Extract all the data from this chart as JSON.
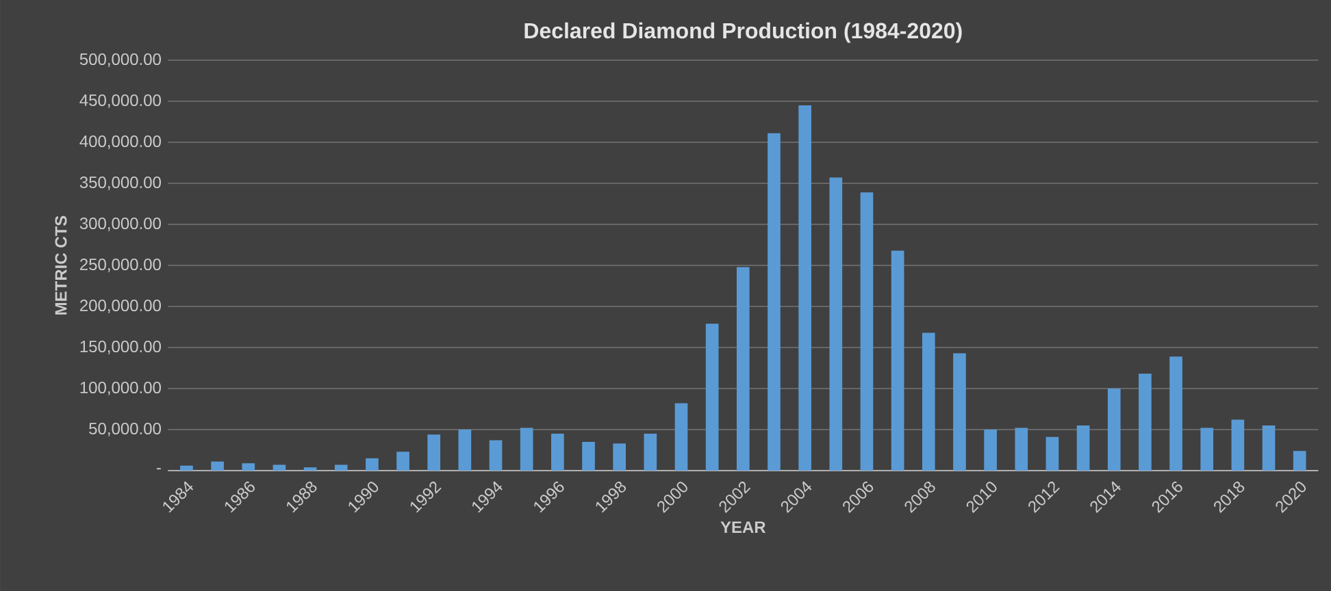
{
  "chart_data": {
    "type": "bar",
    "title": "Declared Diamond Production (1984-2020)",
    "xlabel": "YEAR",
    "ylabel": "METRIC CTS",
    "categories": [
      "1984",
      null,
      "1986",
      null,
      "1988",
      null,
      "1990",
      null,
      "1992",
      null,
      "1994",
      null,
      "1996",
      null,
      "1998",
      null,
      "2000",
      null,
      "2002",
      null,
      "2004",
      null,
      "2006",
      null,
      "2008",
      null,
      "2010",
      null,
      "2012",
      null,
      "2014",
      null,
      "2016",
      null,
      "2018",
      null,
      "2020"
    ],
    "values": [
      6000,
      11000,
      9000,
      7000,
      4000,
      7000,
      15000,
      23000,
      44000,
      50000,
      37000,
      52000,
      45000,
      35000,
      33000,
      45000,
      82000,
      179000,
      248000,
      411000,
      445000,
      357000,
      339000,
      268000,
      168000,
      143000,
      50000,
      52000,
      41000,
      55000,
      100000,
      118000,
      139000,
      52000,
      62000,
      55000,
      24000
    ],
    "color": "#5b9bd5",
    "ylim": [
      0,
      500000
    ],
    "yticks": [
      {
        "value": 0,
        "label": "-"
      },
      {
        "value": 50000,
        "label": "50,000.00"
      },
      {
        "value": 100000,
        "label": "100,000.00"
      },
      {
        "value": 150000,
        "label": "150,000.00"
      },
      {
        "value": 200000,
        "label": "200,000.00"
      },
      {
        "value": 250000,
        "label": "250,000.00"
      },
      {
        "value": 300000,
        "label": "300,000.00"
      },
      {
        "value": 350000,
        "label": "350,000.00"
      },
      {
        "value": 400000,
        "label": "400,000.00"
      },
      {
        "value": 450000,
        "label": "450,000.00"
      },
      {
        "value": 500000,
        "label": "500,000.00"
      }
    ],
    "grid": "y"
  }
}
